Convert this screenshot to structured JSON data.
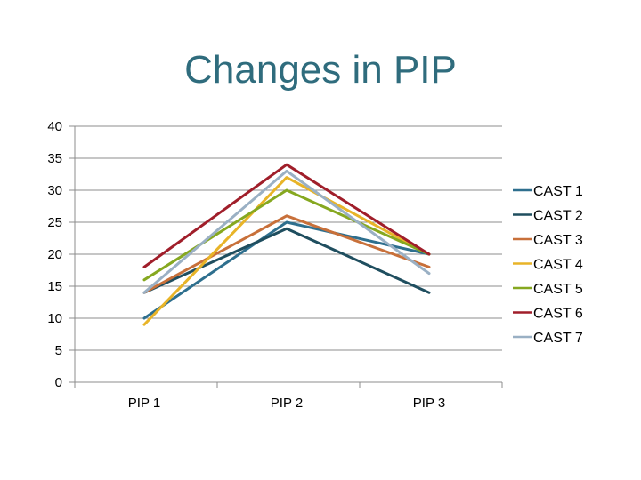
{
  "slide": {
    "title": "Changes in PIP"
  },
  "chart_data": {
    "type": "line",
    "title": "Changes in PIP",
    "xlabel": "",
    "ylabel": "",
    "categories": [
      "PIP 1",
      "PIP 2",
      "PIP 3"
    ],
    "ylim": [
      0,
      40
    ],
    "yticks": [
      0,
      5,
      10,
      15,
      20,
      25,
      30,
      35,
      40
    ],
    "grid": true,
    "legend": "right",
    "series": [
      {
        "name": "CAST 1",
        "values": [
          10,
          25,
          20
        ],
        "color": "#2e6f8e"
      },
      {
        "name": "CAST 2",
        "values": [
          14,
          24,
          14
        ],
        "color": "#1f4e5f"
      },
      {
        "name": "CAST 3",
        "values": [
          14,
          26,
          18
        ],
        "color": "#c8703a"
      },
      {
        "name": "CAST 4",
        "values": [
          9,
          32,
          20
        ],
        "color": "#e8b428"
      },
      {
        "name": "CAST 5",
        "values": [
          16,
          30,
          20
        ],
        "color": "#86a820"
      },
      {
        "name": "CAST 6",
        "values": [
          18,
          34,
          20
        ],
        "color": "#a01e2a"
      },
      {
        "name": "CAST 7",
        "values": [
          14,
          33,
          17
        ],
        "color": "#9ab0c4"
      }
    ]
  }
}
